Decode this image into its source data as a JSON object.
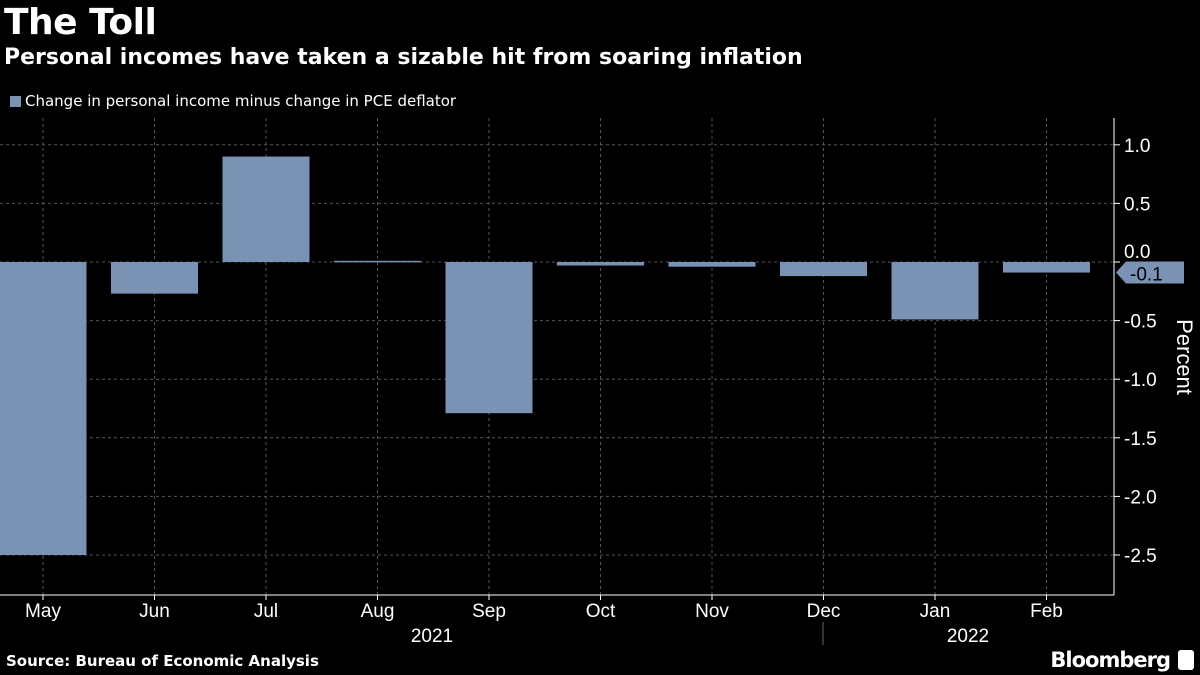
{
  "title": "The Toll",
  "subtitle": "Personal incomes have taken a sizable hit from soaring inflation",
  "source": "Source: Bureau of Economic Analysis",
  "brand": "Bloomberg",
  "colors": {
    "bar": "#7a92b3",
    "background": "#000000"
  },
  "chart_data": {
    "type": "bar",
    "legend": "Change in personal income minus change in PCE deflator",
    "categories": [
      "May",
      "Jun",
      "Jul",
      "Aug",
      "Sep",
      "Oct",
      "Nov",
      "Dec",
      "Jan",
      "Feb"
    ],
    "year_labels": [
      "2021",
      "2022"
    ],
    "values": [
      -2.5,
      -0.27,
      0.9,
      0.01,
      -1.29,
      -0.03,
      -0.04,
      -0.12,
      -0.49,
      -0.09
    ],
    "ylabel": "Percent",
    "ylim": [
      -2.8,
      1.23
    ],
    "yticks": [
      "1.0",
      "0.5",
      "0.0",
      "-0.5",
      "-1.0",
      "-1.5",
      "-2.0",
      "-2.5"
    ],
    "last_value_label": "-0.1",
    "grid": true
  }
}
